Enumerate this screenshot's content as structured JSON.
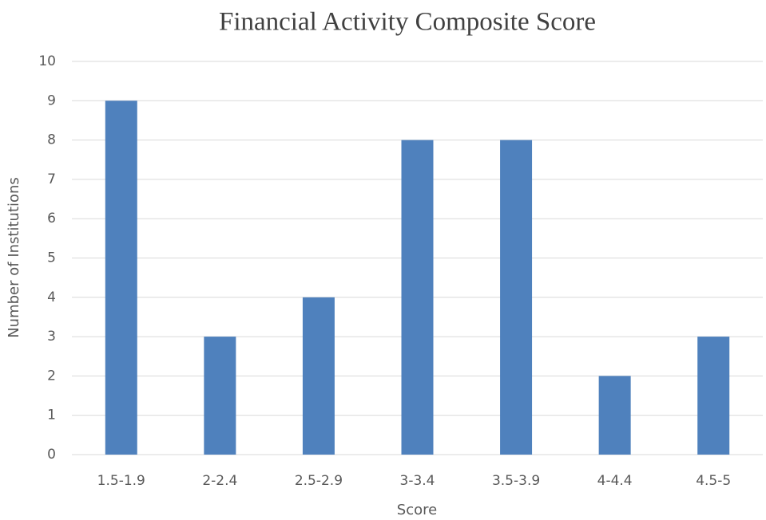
{
  "chart_data": {
    "type": "bar",
    "title": "Financial Activity Composite Score",
    "x_label": "Score",
    "y_label": "Number of Institutions",
    "categories": [
      "1.5-1.9",
      "2-2.4",
      "2.5-2.9",
      "3-3.4",
      "3.5-3.9",
      "4-4.4",
      "4.5-5"
    ],
    "values": [
      9,
      3,
      4,
      8,
      8,
      2,
      3
    ],
    "color": "#4f81bd",
    "ylim": [
      0,
      10
    ],
    "yticks": [
      0,
      1,
      2,
      3,
      4,
      5,
      6,
      7,
      8,
      9,
      10
    ],
    "grid": true
  }
}
